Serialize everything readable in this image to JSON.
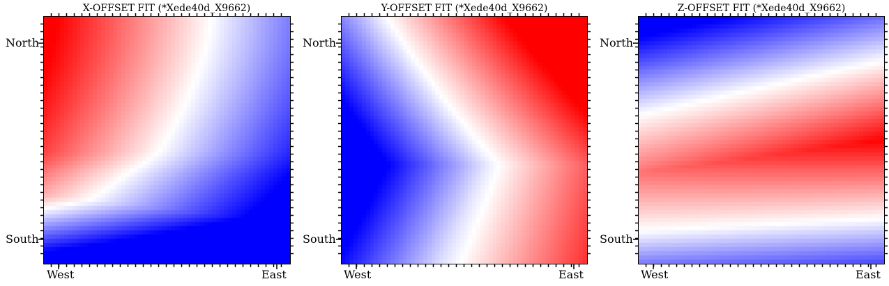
{
  "chart_data": [
    {
      "type": "heatmap",
      "title": "X-OFFSET FIT (*Xede40d_X9662)",
      "x_tick_labels": [
        "West",
        "East"
      ],
      "y_tick_labels": [
        "North",
        "South"
      ],
      "colormap": "bwr",
      "colors": {
        "low": "#0000ff",
        "mid": "#ffffff",
        "high": "#ff0000"
      },
      "pattern": "red top-left, white curved boundary, blue bottom"
    },
    {
      "type": "heatmap",
      "title": "Y-OFFSET FIT (*Xede40d_X9662)",
      "x_tick_labels": [
        "West",
        "East"
      ],
      "y_tick_labels": [
        "North",
        "South"
      ],
      "colormap": "bwr",
      "colors": {
        "low": "#0000ff",
        "mid": "#ffffff",
        "high": "#ff0000"
      },
      "pattern": "blue left-center, white chevron boundary, red top-right"
    },
    {
      "type": "heatmap",
      "title": "Z-OFFSET FIT (*Xede40d_X9662)",
      "x_tick_labels": [
        "West",
        "East"
      ],
      "y_tick_labels": [
        "North",
        "South"
      ],
      "colormap": "bwr",
      "colors": {
        "low": "#0000ff",
        "mid": "#ffffff",
        "high": "#ff0000"
      },
      "pattern": "blue top and bottom bands, red middle band"
    }
  ]
}
